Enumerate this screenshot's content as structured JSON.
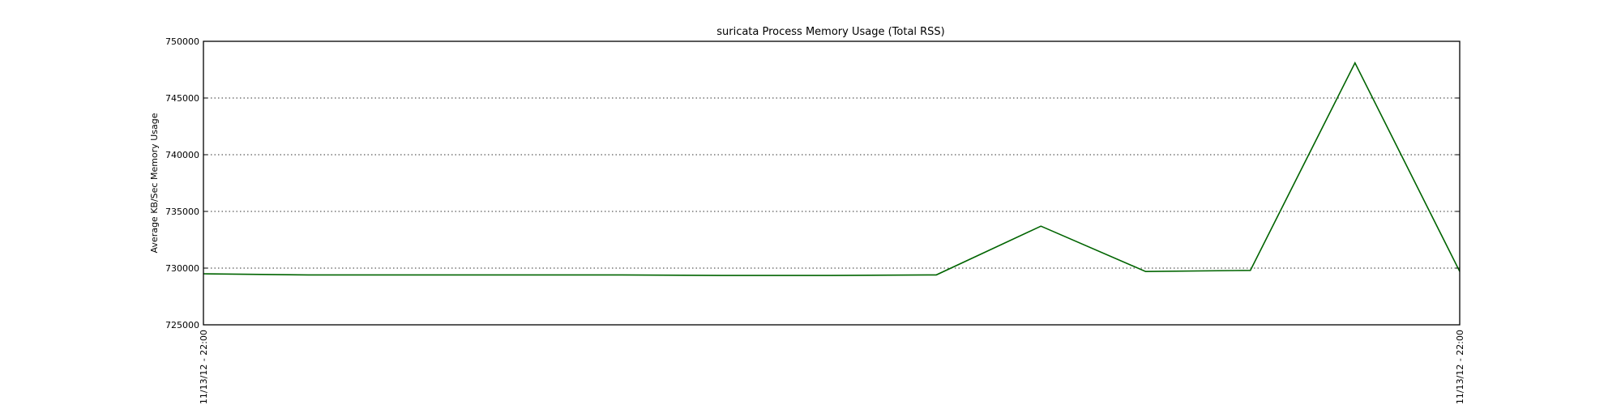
{
  "chart_data": {
    "type": "line",
    "title": "suricata Process Memory Usage (Total RSS)",
    "xlabel": "",
    "ylabel": "Average KB/Sec Memory Usage",
    "ylim": [
      725000,
      750000
    ],
    "yticks": [
      725000,
      730000,
      735000,
      740000,
      745000,
      750000
    ],
    "ytick_labels": [
      "725000",
      "730000",
      "735000",
      "740000",
      "745000",
      "750000"
    ],
    "xtick_labels": [
      "11/13/12 - 22:00",
      "11/13/12 - 22:00"
    ],
    "grid": "horizontal dotted",
    "series": [
      {
        "color": "#006400",
        "values": [
          729500,
          729400,
          729400,
          729400,
          729400,
          729350,
          729350,
          729400,
          733700,
          729700,
          729800,
          748100,
          729700
        ]
      }
    ]
  }
}
